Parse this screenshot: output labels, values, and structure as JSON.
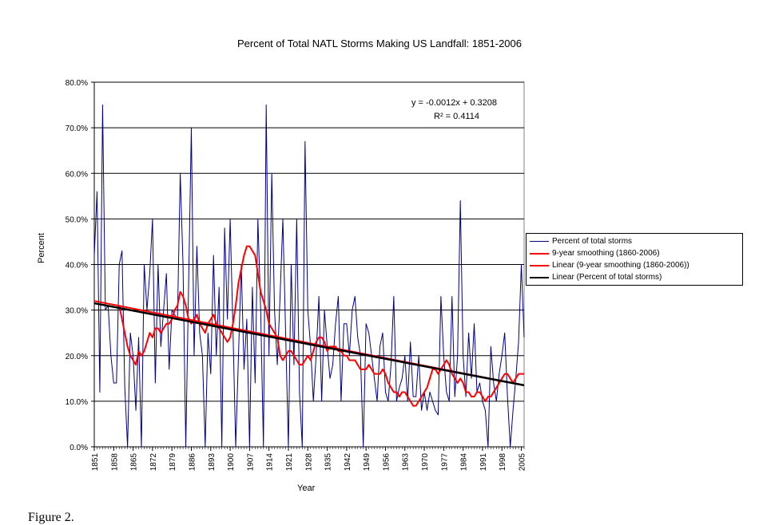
{
  "chart_data": {
    "type": "line",
    "title": "Percent of Total NATL Storms Making US Landfall: 1851-2006",
    "xlabel": "Year",
    "ylabel": "Percent",
    "xlim": [
      1851,
      2006
    ],
    "ylim": [
      0,
      0.8
    ],
    "y_ticks": [
      "0.0%",
      "10.0%",
      "20.0%",
      "30.0%",
      "40.0%",
      "50.0%",
      "60.0%",
      "70.0%",
      "80.0%"
    ],
    "x_tick_labels": [
      "1851",
      "1858",
      "1865",
      "1872",
      "1879",
      "1886",
      "1893",
      "1900",
      "1907",
      "1914",
      "1921",
      "1928",
      "1935",
      "1942",
      "1949",
      "1956",
      "1963",
      "1970",
      "1977",
      "1984",
      "1991",
      "1998",
      "2005"
    ],
    "grid": "horizontal",
    "legend_position": "right",
    "annotation": {
      "equation": "y = -0.0012x + 0.3208",
      "r2": "R² = 0.4114"
    },
    "series": [
      {
        "name": "Percent of total storms",
        "color": "#000080",
        "x_start": 1851,
        "values": [
          0.42,
          0.56,
          0.12,
          0.75,
          0.3,
          0.31,
          0.2,
          0.14,
          0.14,
          0.4,
          0.43,
          0.13,
          0.0,
          0.25,
          0.2,
          0.08,
          0.24,
          0.0,
          0.4,
          0.3,
          0.38,
          0.5,
          0.14,
          0.4,
          0.22,
          0.3,
          0.38,
          0.17,
          0.3,
          0.29,
          0.28,
          0.6,
          0.4,
          0.0,
          0.35,
          0.7,
          0.2,
          0.44,
          0.25,
          0.2,
          0.0,
          0.25,
          0.16,
          0.42,
          0.2,
          0.35,
          0.0,
          0.48,
          0.28,
          0.5,
          0.26,
          0.0,
          0.2,
          0.4,
          0.17,
          0.28,
          0.0,
          0.35,
          0.14,
          0.5,
          0.3,
          0.0,
          0.75,
          0.2,
          0.6,
          0.3,
          0.18,
          0.33,
          0.5,
          0.25,
          0.0,
          0.4,
          0.18,
          0.5,
          0.12,
          0.0,
          0.67,
          0.3,
          0.22,
          0.1,
          0.2,
          0.33,
          0.1,
          0.3,
          0.22,
          0.15,
          0.18,
          0.27,
          0.33,
          0.1,
          0.27,
          0.27,
          0.2,
          0.3,
          0.33,
          0.24,
          0.2,
          0.0,
          0.27,
          0.25,
          0.2,
          0.15,
          0.1,
          0.22,
          0.25,
          0.12,
          0.1,
          0.18,
          0.33,
          0.1,
          0.13,
          0.15,
          0.2,
          0.1,
          0.23,
          0.11,
          0.11,
          0.2,
          0.08,
          0.12,
          0.08,
          0.12,
          0.1,
          0.08,
          0.07,
          0.33,
          0.2,
          0.12,
          0.1,
          0.33,
          0.11,
          0.2,
          0.54,
          0.2,
          0.11,
          0.25,
          0.15,
          0.27,
          0.12,
          0.14,
          0.1,
          0.08,
          0.0,
          0.22,
          0.14,
          0.1,
          0.16,
          0.2,
          0.25,
          0.11,
          0.0,
          0.08,
          0.15,
          0.23,
          0.4,
          0.24
        ]
      },
      {
        "name": "9-year smoothing (1860-2006)",
        "color": "#ff0000",
        "x_start": 1860,
        "values": [
          0.31,
          0.28,
          0.25,
          0.22,
          0.2,
          0.19,
          0.18,
          0.21,
          0.2,
          0.21,
          0.23,
          0.25,
          0.24,
          0.26,
          0.26,
          0.25,
          0.26,
          0.27,
          0.27,
          0.28,
          0.3,
          0.31,
          0.34,
          0.33,
          0.31,
          0.28,
          0.27,
          0.28,
          0.29,
          0.27,
          0.26,
          0.25,
          0.27,
          0.28,
          0.29,
          0.27,
          0.26,
          0.25,
          0.24,
          0.23,
          0.24,
          0.27,
          0.31,
          0.36,
          0.39,
          0.42,
          0.44,
          0.44,
          0.43,
          0.42,
          0.38,
          0.34,
          0.32,
          0.3,
          0.27,
          0.26,
          0.25,
          0.24,
          0.2,
          0.19,
          0.2,
          0.21,
          0.21,
          0.2,
          0.19,
          0.18,
          0.18,
          0.19,
          0.2,
          0.19,
          0.21,
          0.23,
          0.24,
          0.24,
          0.23,
          0.21,
          0.22,
          0.22,
          0.22,
          0.21,
          0.21,
          0.2,
          0.2,
          0.19,
          0.19,
          0.19,
          0.18,
          0.17,
          0.17,
          0.17,
          0.18,
          0.17,
          0.16,
          0.16,
          0.16,
          0.17,
          0.16,
          0.14,
          0.13,
          0.12,
          0.12,
          0.11,
          0.12,
          0.12,
          0.11,
          0.1,
          0.09,
          0.09,
          0.1,
          0.11,
          0.12,
          0.13,
          0.15,
          0.17,
          0.17,
          0.16,
          0.17,
          0.18,
          0.19,
          0.18,
          0.16,
          0.15,
          0.14,
          0.15,
          0.14,
          0.12,
          0.12,
          0.11,
          0.11,
          0.12,
          0.12,
          0.11,
          0.1,
          0.11,
          0.11,
          0.12,
          0.13,
          0.14,
          0.15,
          0.16,
          0.16,
          0.15,
          0.14,
          0.15,
          0.16,
          0.16,
          0.16
        ]
      },
      {
        "name": "Linear (9-year smoothing (1860-2006))",
        "color": "#ff0000",
        "x": [
          1851,
          2006
        ],
        "values": [
          0.32,
          0.135
        ]
      },
      {
        "name": "Linear (Percent of total storms)",
        "color": "#000000",
        "x": [
          1851,
          2006
        ],
        "values": [
          0.315,
          0.135
        ]
      }
    ]
  },
  "caption": "Figure 2."
}
